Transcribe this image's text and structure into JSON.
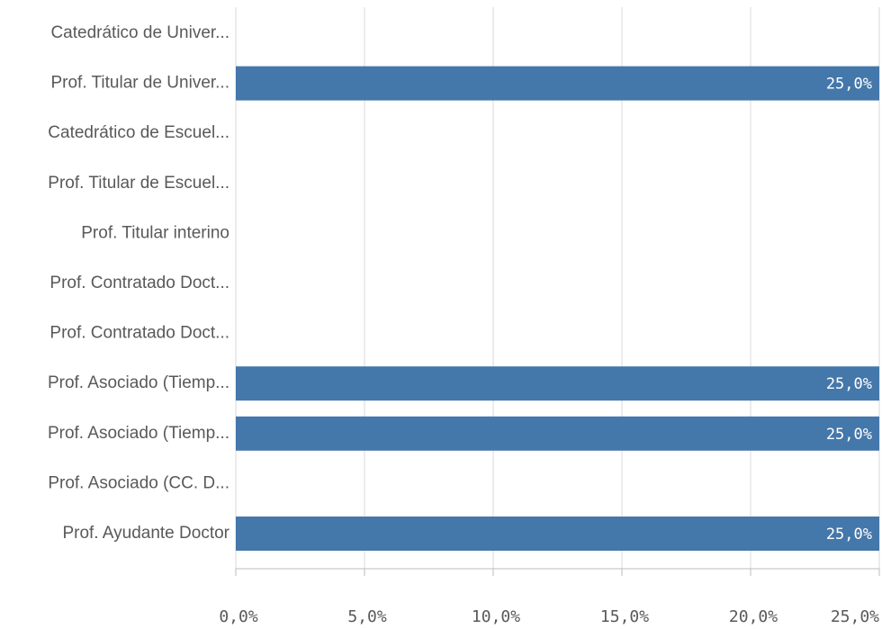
{
  "chart_data": {
    "type": "hbar",
    "categories": [
      "Catedrático de Univer...",
      "Prof. Titular de Univer...",
      "Catedrático de Escuel...",
      "Prof. Titular de Escuel...",
      "Prof. Titular interino",
      "Prof. Contratado Doct...",
      "Prof. Contratado Doct...",
      "Prof. Asociado (Tiemp...",
      "Prof. Asociado (Tiemp...",
      "Prof. Asociado (CC. D...",
      "Prof. Ayudante Doctor"
    ],
    "values": [
      0,
      25,
      0,
      0,
      0,
      0,
      0,
      25,
      25,
      0,
      25
    ],
    "value_labels": [
      null,
      "25,0%",
      null,
      null,
      null,
      null,
      null,
      "25,0%",
      "25,0%",
      null,
      "25,0%"
    ],
    "color": "#4477aa",
    "xlim": [
      0,
      25
    ],
    "xticks": [
      {
        "value": 0,
        "label": "0,0%"
      },
      {
        "value": 5,
        "label": "5,0%"
      },
      {
        "value": 10,
        "label": "10,0%"
      },
      {
        "value": 15,
        "label": "15,0%"
      },
      {
        "value": 20,
        "label": "20,0%"
      },
      {
        "value": 25,
        "label": "25,0%"
      }
    ],
    "grid": true
  }
}
